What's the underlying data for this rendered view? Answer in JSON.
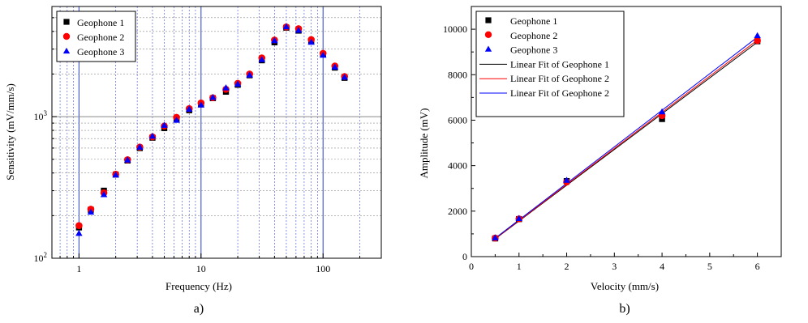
{
  "chart_data": [
    {
      "type": "scatter",
      "panel_caption": "a)",
      "xlabel": "Frequency (Hz)",
      "ylabel": "Sensitivity (mV/mm/s)",
      "xscale": "log",
      "yscale": "log",
      "xlim": [
        0.6,
        300
      ],
      "ylim": [
        100,
        6000
      ],
      "grid": true,
      "legend_position": "top-left",
      "x_tick_labels": [
        "1",
        "10",
        "100"
      ],
      "y_tick_labels": [
        {
          "base": "10",
          "exp": "2",
          "value": 100
        },
        {
          "base": "10",
          "exp": "3",
          "value": 1000
        }
      ],
      "x": [
        1,
        1.25,
        1.6,
        2,
        2.5,
        3.15,
        4,
        5,
        6.3,
        8,
        10,
        12.5,
        16,
        20,
        25,
        31.5,
        40,
        50,
        63,
        80,
        100,
        125,
        150
      ],
      "series": [
        {
          "name": "Geophone 1",
          "marker": "square",
          "color": "#000000",
          "values": [
            165,
            220,
            300,
            390,
            490,
            600,
            710,
            830,
            960,
            1110,
            1220,
            1350,
            1500,
            1680,
            1960,
            2500,
            3350,
            4250,
            4050,
            3400,
            2750,
            2220,
            1880
          ]
        },
        {
          "name": "Geophone 2",
          "marker": "circle",
          "color": "#ff0000",
          "values": [
            170,
            222,
            290,
            392,
            496,
            610,
            720,
            858,
            990,
            1140,
            1250,
            1360,
            1560,
            1720,
            2000,
            2600,
            3480,
            4300,
            4180,
            3500,
            2800,
            2280,
            1920
          ]
        },
        {
          "name": "Geophone 3",
          "marker": "triangle",
          "color": "#0000ff",
          "values": [
            150,
            212,
            282,
            388,
            495,
            610,
            730,
            870,
            945,
            1130,
            1210,
            1370,
            1600,
            1700,
            1970,
            2530,
            3450,
            4320,
            4080,
            3360,
            2720,
            2240,
            1900
          ]
        }
      ]
    },
    {
      "type": "scatter",
      "panel_caption": "b)",
      "xlabel": "Velocity (mm/s)",
      "ylabel": "Amplitude (mV)",
      "xlim": [
        0,
        6.5
      ],
      "ylim": [
        0,
        11000
      ],
      "x_ticks": [
        0,
        1,
        2,
        3,
        4,
        5,
        6
      ],
      "y_ticks": [
        0,
        2000,
        4000,
        6000,
        8000,
        10000
      ],
      "grid": false,
      "legend_position": "top-left",
      "x": [
        0.5,
        1,
        2,
        4,
        6
      ],
      "series": [
        {
          "name": "Geophone 1",
          "marker": "square",
          "color": "#000000",
          "values": [
            800,
            1650,
            3320,
            6050,
            9470
          ]
        },
        {
          "name": "Geophone 2",
          "marker": "circle",
          "color": "#ff0000",
          "values": [
            815,
            1660,
            3280,
            6200,
            9500
          ]
        },
        {
          "name": "Geophone 3",
          "marker": "triangle",
          "color": "#0000ff",
          "values": [
            830,
            1680,
            3360,
            6370,
            9720
          ]
        }
      ],
      "fits": [
        {
          "name": "Linear Fit of Geophone 1",
          "color": "#000000",
          "x_range": [
            0.5,
            6
          ],
          "y_range": [
            780,
            9430
          ]
        },
        {
          "name": "Linear Fit of Geophone 2",
          "color": "#ff0000",
          "x_range": [
            0.5,
            6
          ],
          "y_range": [
            790,
            9520
          ]
        },
        {
          "name": "Linear Fit of Geophone 2",
          "color": "#0000ff",
          "x_range": [
            0.5,
            6
          ],
          "y_range": [
            810,
            9650
          ]
        }
      ]
    }
  ]
}
